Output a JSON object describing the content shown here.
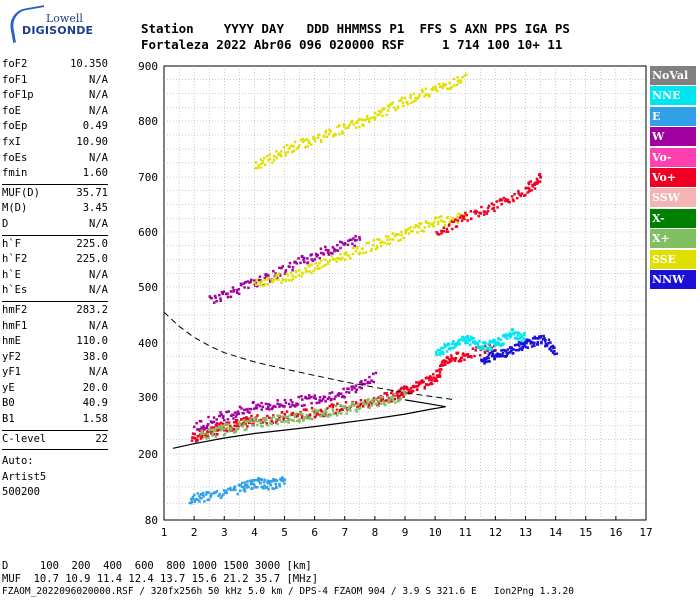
{
  "logo": {
    "line1": "Lowell",
    "line2": "DIGISONDE"
  },
  "header": {
    "row1": "Station    YYYY DAY   DDD HHMMSS P1  FFS S AXN PPS IGA PS",
    "row2": "Fortaleza 2022 Abr06 096 020000 RSF     1 714 100 10+ 11"
  },
  "params": [
    [
      [
        "foF2",
        "10.350"
      ],
      [
        "foF1",
        "N/A"
      ],
      [
        "foF1p",
        "N/A"
      ],
      [
        "foE",
        "N/A"
      ],
      [
        "foEp",
        "0.49"
      ],
      [
        "fxI",
        "10.90"
      ],
      [
        "foEs",
        "N/A"
      ],
      [
        "fmin",
        "1.60"
      ]
    ],
    [
      [
        "MUF(D)",
        "35.71"
      ],
      [
        "M(D)",
        "3.45"
      ],
      [
        "D",
        "N/A"
      ]
    ],
    [
      [
        "h`F",
        "225.0"
      ],
      [
        "h`F2",
        "225.0"
      ],
      [
        "h`E",
        "N/A"
      ],
      [
        "h`Es",
        "N/A"
      ]
    ],
    [
      [
        "hmF2",
        "283.2"
      ],
      [
        "hmF1",
        "N/A"
      ],
      [
        "hmE",
        "110.0"
      ],
      [
        "yF2",
        "38.0"
      ],
      [
        "yF1",
        "N/A"
      ],
      [
        "yE",
        "20.0"
      ],
      [
        "B0",
        "40.9"
      ],
      [
        "B1",
        "1.58"
      ]
    ],
    [
      [
        "C-level",
        "22"
      ]
    ]
  ],
  "auto": [
    "Auto:",
    "Artist5",
    "500200"
  ],
  "legend": [
    {
      "label": "NoVal",
      "color": "#808080"
    },
    {
      "label": "NNE",
      "color": "#00e6f0"
    },
    {
      "label": "E",
      "color": "#30a0e8"
    },
    {
      "label": "W",
      "color": "#a000a0"
    },
    {
      "label": "Vo-",
      "color": "#ff40b0"
    },
    {
      "label": "Vo+",
      "color": "#ee0022"
    },
    {
      "label": "SSW",
      "color": "#f4b4b4"
    },
    {
      "label": "X-",
      "color": "#008000"
    },
    {
      "label": "X+",
      "color": "#80c060"
    },
    {
      "label": "SSE",
      "color": "#e0e000"
    },
    {
      "label": "NNW",
      "color": "#1a10d8"
    }
  ],
  "footer": {
    "line1": "D     100  200  400  600  800 1000 1500 3000 [km]",
    "line2": "MUF  10.7 10.9 11.4 12.4 13.7 15.6 21.2 35.7 [MHz]",
    "line3": "FZAOM_2022096020000.RSF / 320fx256h 50 kHz 5.0 km / DPS-4 FZAOM 904 / 3.9 S 321.6 E   Ion2Png 1.3.20"
  },
  "chart_data": {
    "type": "scatter",
    "xlim": [
      1,
      17
    ],
    "ylim": [
      80,
      900
    ],
    "xticks": [
      1,
      2,
      3,
      4,
      5,
      6,
      7,
      8,
      9,
      10,
      11,
      12,
      13,
      14,
      15,
      16,
      17
    ],
    "yticks": [
      80,
      200,
      300,
      400,
      500,
      600,
      700,
      800,
      900
    ],
    "grid": true,
    "traces": [
      {
        "legend": "Vo+",
        "points": [
          [
            1.9,
            230
          ],
          [
            2.4,
            240
          ],
          [
            3.0,
            250
          ],
          [
            3.5,
            255
          ],
          [
            4.0,
            262
          ],
          [
            5.0,
            268
          ],
          [
            6.0,
            275
          ],
          [
            7.0,
            285
          ],
          [
            8.0,
            295
          ],
          [
            8.6,
            305
          ],
          [
            9.0,
            315
          ],
          [
            9.5,
            325
          ],
          [
            10.0,
            340
          ],
          [
            10.35,
            372
          ],
          [
            11.0,
            380
          ],
          [
            12.0,
            395
          ]
        ]
      },
      {
        "legend": "X+",
        "points": [
          [
            2.2,
            235
          ],
          [
            3.0,
            245
          ],
          [
            4.0,
            258
          ],
          [
            5.0,
            264
          ],
          [
            6.0,
            272
          ],
          [
            7.0,
            282
          ],
          [
            8.0,
            292
          ],
          [
            9.0,
            305
          ]
        ]
      },
      {
        "legend": "W",
        "points": [
          [
            2.0,
            250
          ],
          [
            3.0,
            270
          ],
          [
            4.0,
            285
          ],
          [
            5.0,
            290
          ],
          [
            6.0,
            300
          ],
          [
            7.0,
            310
          ],
          [
            8.0,
            340
          ]
        ]
      },
      {
        "legend": "W",
        "points": [
          [
            2.5,
            480
          ],
          [
            3.5,
            500
          ],
          [
            4.5,
            520
          ],
          [
            5.5,
            550
          ],
          [
            6.5,
            570
          ],
          [
            7.5,
            590
          ]
        ]
      },
      {
        "legend": "SSE",
        "points": [
          [
            4.0,
            510
          ],
          [
            5.0,
            520
          ],
          [
            6.0,
            540
          ],
          [
            7.0,
            560
          ],
          [
            8.0,
            580
          ],
          [
            9.0,
            600
          ],
          [
            10.0,
            620
          ],
          [
            11.0,
            630
          ]
        ]
      },
      {
        "legend": "SSE",
        "points": [
          [
            4.0,
            720
          ],
          [
            5.0,
            750
          ],
          [
            6.0,
            770
          ],
          [
            7.0,
            790
          ],
          [
            8.0,
            810
          ],
          [
            9.0,
            840
          ],
          [
            10.0,
            860
          ],
          [
            11.0,
            880
          ]
        ]
      },
      {
        "legend": "NNE",
        "points": [
          [
            10.0,
            380
          ],
          [
            10.5,
            400
          ],
          [
            11.0,
            410
          ],
          [
            11.5,
            395
          ],
          [
            12.0,
            400
          ],
          [
            12.5,
            420
          ],
          [
            13.0,
            410
          ]
        ]
      },
      {
        "legend": "NNW",
        "points": [
          [
            11.5,
            370
          ],
          [
            12.0,
            380
          ],
          [
            12.5,
            390
          ],
          [
            13.0,
            400
          ],
          [
            13.5,
            410
          ],
          [
            14.0,
            385
          ]
        ]
      },
      {
        "legend": "E",
        "points": [
          [
            1.8,
            120
          ],
          [
            2.5,
            125
          ],
          [
            3.5,
            140
          ],
          [
            4.0,
            150
          ],
          [
            4.5,
            145
          ],
          [
            5.0,
            155
          ]
        ]
      },
      {
        "legend": "Vo+",
        "points": [
          [
            10.0,
            600
          ],
          [
            11.0,
            630
          ],
          [
            12.0,
            650
          ],
          [
            13.0,
            680
          ],
          [
            13.5,
            700
          ]
        ]
      }
    ],
    "profile": [
      [
        1.3,
        210
      ],
      [
        2.0,
        218
      ],
      [
        3.0,
        228
      ],
      [
        4.0,
        236
      ],
      [
        5.0,
        242
      ],
      [
        6.0,
        248
      ],
      [
        7.0,
        255
      ],
      [
        8.0,
        262
      ],
      [
        9.0,
        270
      ],
      [
        9.8,
        278
      ],
      [
        10.35,
        283
      ],
      [
        9.8,
        288
      ],
      [
        9.0,
        295
      ]
    ],
    "muf_curve": [
      [
        1.0,
        455
      ],
      [
        1.5,
        430
      ],
      [
        2.0,
        410
      ],
      [
        2.5,
        395
      ],
      [
        3.0,
        382
      ],
      [
        4.0,
        365
      ],
      [
        5.0,
        352
      ],
      [
        6.0,
        340
      ],
      [
        7.0,
        328
      ],
      [
        8.0,
        318
      ],
      [
        9.0,
        308
      ],
      [
        10.0,
        300
      ],
      [
        10.7,
        295
      ]
    ]
  }
}
